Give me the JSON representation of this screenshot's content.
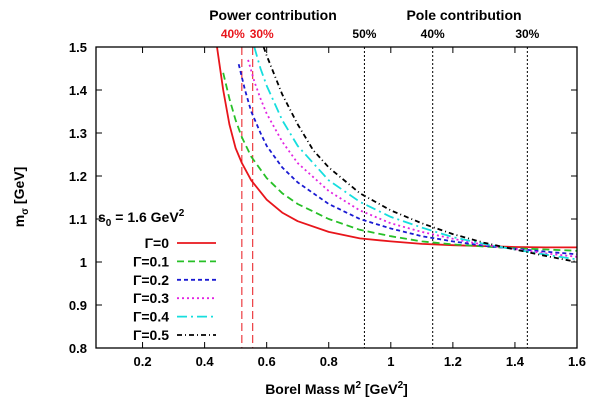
{
  "chart_data": {
    "type": "line",
    "xlabel_main": "Borel Mass M",
    "xlabel_sup": "2",
    "xlabel_unit_pre": " [GeV",
    "xlabel_unit_sup": "2",
    "xlabel_unit_post": "]",
    "ylabel_main": "m",
    "ylabel_sub": "σ",
    "ylabel_unit": " [GeV]",
    "xlim": [
      0.05,
      1.6
    ],
    "ylim": [
      0.8,
      1.5
    ],
    "xticks": [
      0.2,
      0.4,
      0.6,
      0.8,
      1,
      1.2,
      1.4,
      1.6
    ],
    "xtick_labels": [
      "0.2",
      "0.4",
      "0.6",
      "0.8",
      "1",
      "1.2",
      "1.4",
      "1.6"
    ],
    "yticks": [
      0.8,
      0.9,
      1,
      1.1,
      1.2,
      1.3,
      1.4,
      1.5
    ],
    "ytick_labels": [
      "0.8",
      "0.9",
      "1",
      "1.1",
      "1.2",
      "1.3",
      "1.4",
      "1.5"
    ],
    "grid": false,
    "legend_title_pre": "s",
    "legend_title_sub": "0",
    "legend_title_mid": " = 1.6 GeV",
    "legend_title_sup": "2",
    "legend_placement": "left",
    "top_labels": {
      "power": "Power contribution",
      "pole": "Pole contribution"
    },
    "vlines": [
      {
        "x": 0.52,
        "label": "40%",
        "color": "#e8151b",
        "style": "dashed"
      },
      {
        "x": 0.555,
        "label": "30%",
        "color": "#e8151b",
        "style": "dashed"
      },
      {
        "x": 0.915,
        "label": "50%",
        "color": "#000000",
        "style": "dotted"
      },
      {
        "x": 1.135,
        "label": "40%",
        "color": "#000000",
        "style": "dotted"
      },
      {
        "x": 1.44,
        "label": "30%",
        "color": "#000000",
        "style": "dotted"
      }
    ],
    "series": [
      {
        "name": "Γ=0",
        "color": "#e8151b",
        "dash": "none",
        "x": [
          0.44,
          0.46,
          0.48,
          0.5,
          0.52,
          0.55,
          0.6,
          0.65,
          0.7,
          0.8,
          0.9,
          1.0,
          1.1,
          1.2,
          1.3,
          1.4,
          1.5,
          1.6
        ],
        "y": [
          1.5,
          1.4,
          1.32,
          1.265,
          1.23,
          1.19,
          1.145,
          1.115,
          1.095,
          1.07,
          1.055,
          1.048,
          1.042,
          1.039,
          1.037,
          1.035,
          1.034,
          1.034
        ]
      },
      {
        "name": "Γ=0.1",
        "color": "#27c027",
        "dash": "7,4",
        "x": [
          0.46,
          0.48,
          0.5,
          0.52,
          0.55,
          0.6,
          0.65,
          0.7,
          0.8,
          0.9,
          1.0,
          1.1,
          1.2,
          1.3,
          1.4,
          1.5,
          1.6
        ],
        "y": [
          1.44,
          1.38,
          1.33,
          1.29,
          1.245,
          1.195,
          1.16,
          1.135,
          1.1,
          1.075,
          1.06,
          1.048,
          1.041,
          1.036,
          1.032,
          1.029,
          1.026
        ]
      },
      {
        "name": "Γ=0.2",
        "color": "#1a1ad2",
        "dash": "4,3",
        "x": [
          0.51,
          0.53,
          0.55,
          0.58,
          0.6,
          0.65,
          0.7,
          0.8,
          0.9,
          1.0,
          1.1,
          1.2,
          1.3,
          1.4,
          1.5,
          1.6
        ],
        "y": [
          1.46,
          1.4,
          1.35,
          1.3,
          1.27,
          1.22,
          1.185,
          1.135,
          1.1,
          1.078,
          1.06,
          1.048,
          1.038,
          1.031,
          1.024,
          1.018
        ]
      },
      {
        "name": "Γ=0.3",
        "color": "#e224e2",
        "dash": "2,3",
        "x": [
          0.54,
          0.56,
          0.58,
          0.6,
          0.65,
          0.7,
          0.8,
          0.9,
          1.0,
          1.1,
          1.2,
          1.3,
          1.4,
          1.5,
          1.6
        ],
        "y": [
          1.47,
          1.42,
          1.38,
          1.345,
          1.28,
          1.23,
          1.165,
          1.12,
          1.09,
          1.07,
          1.054,
          1.04,
          1.03,
          1.02,
          1.012
        ]
      },
      {
        "name": "Γ=0.4",
        "color": "#16dede",
        "dash": "10,4,2,4",
        "x": [
          0.56,
          0.58,
          0.6,
          0.65,
          0.7,
          0.8,
          0.9,
          1.0,
          1.1,
          1.2,
          1.3,
          1.4,
          1.5,
          1.6
        ],
        "y": [
          1.5,
          1.45,
          1.41,
          1.33,
          1.27,
          1.19,
          1.14,
          1.105,
          1.08,
          1.058,
          1.042,
          1.029,
          1.017,
          1.006
        ]
      },
      {
        "name": "Γ=0.5",
        "color": "#000000",
        "dash": "5,3,1,3",
        "x": [
          0.59,
          0.6,
          0.65,
          0.7,
          0.75,
          0.8,
          0.9,
          1.0,
          1.1,
          1.2,
          1.3,
          1.4,
          1.5,
          1.6
        ],
        "y": [
          1.5,
          1.48,
          1.39,
          1.32,
          1.26,
          1.22,
          1.16,
          1.12,
          1.09,
          1.065,
          1.045,
          1.029,
          1.014,
          1.0
        ]
      }
    ]
  }
}
